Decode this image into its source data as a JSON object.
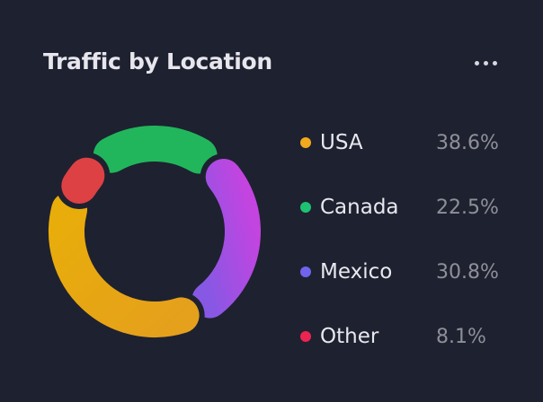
{
  "header": {
    "title": "Traffic by Location",
    "menu_icon": "more-horizontal-icon"
  },
  "chart_data": {
    "type": "pie",
    "variant": "donut",
    "title": "Traffic by Location",
    "legend_position": "right",
    "categories": [
      "USA",
      "Canada",
      "Mexico",
      "Other"
    ],
    "values": [
      38.6,
      22.5,
      30.8,
      8.1
    ],
    "labels": [
      "38.6%",
      "22.5%",
      "30.8%",
      "8.1%"
    ],
    "colors": [
      "#f2a91e",
      "#1fc173",
      "#7064ec",
      "#ec2452"
    ],
    "arc_colors": {
      "USA": [
        "#e8ad0a",
        "#e5a01c"
      ],
      "Canada": [
        "#21b65c",
        "#21b65c"
      ],
      "Mexico": [
        "#8758e4",
        "#c444e0"
      ],
      "Other": [
        "#dd4144",
        "#dd4144"
      ]
    },
    "draw_order": [
      "Canada",
      "Mexico",
      "USA",
      "Other"
    ]
  }
}
